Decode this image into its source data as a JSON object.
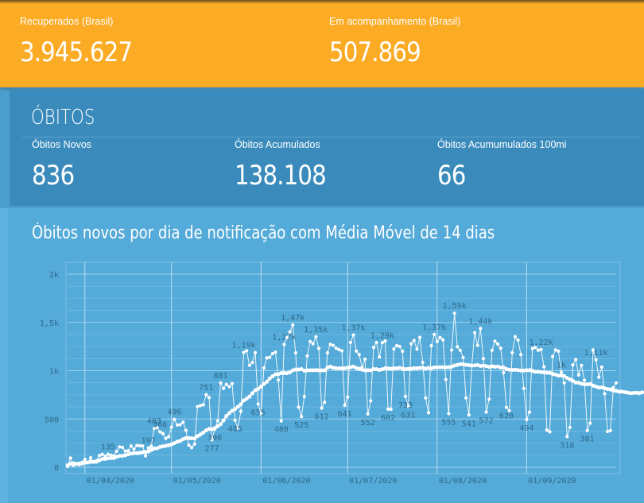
{
  "top_cards": [
    {
      "label": "Recuperados (Brasil)",
      "value": "3.945.627"
    },
    {
      "label": "Em acompanhamento (Brasil)",
      "value": "507.869"
    }
  ],
  "deaths": {
    "title": "ÓBITOS",
    "cards": [
      {
        "label": "Óbitos Novos",
        "value": "836"
      },
      {
        "label": "Óbitos Acumulados",
        "value": "138.108"
      },
      {
        "label": "Óbitos Acumumulados 100mi",
        "value": "66"
      }
    ]
  },
  "colors": {
    "orange": "#fbab24",
    "blue_dark": "#3a8bbc",
    "blue_chart": "#54aad8"
  },
  "chart_data": {
    "type": "line",
    "title": "Óbitos novos por dia de notificação com Média Móvel de 14 dias",
    "ylim": [
      0,
      2000
    ],
    "y_ticks": [
      "0",
      "500",
      "1k",
      "1,5k",
      "2k"
    ],
    "x_ticks": [
      "01/04/2020",
      "01/05/2020",
      "01/06/2020",
      "01/07/2020",
      "01/08/2020",
      "01/09/2020"
    ],
    "grid": true,
    "annotations": [
      "135",
      "403",
      "496",
      "197",
      "751",
      "277",
      "881",
      "396",
      "1,19k",
      "485",
      "655",
      "1,47k",
      "480",
      "1,27k",
      "525",
      "1k",
      "612",
      "1,37k",
      "641",
      "552",
      "1,29k",
      "602",
      "733",
      "631",
      "1,37k",
      "1,59k",
      "555",
      "1,44k",
      "541",
      "572",
      "1,35k",
      "620",
      "494",
      "1,22k",
      "366",
      "318",
      "1,11k",
      "381"
    ],
    "series": [
      {
        "values": [
          9,
          96,
          20,
          37,
          41,
          52,
          81,
          49,
          98,
          51,
          69,
          121,
          134,
          114,
          135,
          124,
          119,
          165,
          211,
          205,
          167,
          171,
          220,
          188,
          225,
          222,
          220,
          118,
          200,
          216,
          403,
          411,
          366,
          349,
          299,
          317,
          415,
          496,
          437,
          441,
          466,
          383,
          229,
          204,
          240,
          628,
          639,
          647,
          751,
          722,
          286,
          396,
          481,
          874,
          816,
          858,
          834,
          866,
          485,
          407,
          579,
          1189,
          1207,
          1055,
          1085,
          1187,
          655,
          553,
          1029,
          1133,
          1138,
          1177,
          1193,
          904,
          480,
          1272,
          1344,
          1403,
          1473,
          1185,
          623,
          525,
          731,
          1153,
          1302,
          1279,
          1351,
          1231,
          612,
          673,
          1184,
          1274,
          1262,
          1233,
          1218,
          1206,
          641,
          727,
          1293,
          1370,
          1203,
          1168,
          1035,
          1119,
          552,
          688,
          1241,
          1292,
          1141,
          1290,
          1308,
          602,
          601,
          1224,
          1260,
          1251,
          1201,
          733,
          631,
          1280,
          1314,
          1223,
          1345,
          1086,
          718,
          565,
          1259,
          1376,
          1302,
          1344,
          1320,
          909,
          555,
          1214,
          1595,
          1248,
          1211,
          1137,
          718,
          541,
          1056,
          1394,
          1262,
          1437,
          1125,
          572,
          705,
          1212,
          1305,
          1277,
          1233,
          980,
          620,
          586,
          1186,
          1352,
          1317,
          1167,
          816,
          494,
          571,
          1229,
          1242,
          1212,
          1220,
          1041,
          386,
          366,
          1148,
          1215,
          1202,
          983,
          874,
          318,
          413,
          1060,
          1115,
          956,
          1055,
          901,
          381,
          457,
          1215,
          1113,
          933,
          1037,
          762,
          370,
          380,
          824,
          873
        ]
      },
      {
        "values": [
          20,
          35,
          41,
          36,
          30,
          38,
          47,
          48,
          56,
          56,
          57,
          71,
          86,
          87,
          92,
          96,
          95,
          108,
          117,
          118,
          125,
          134,
          142,
          146,
          146,
          149,
          154,
          158,
          163,
          178,
          193,
          197,
          210,
          216,
          221,
          227,
          237,
          250,
          264,
          273,
          290,
          302,
          301,
          300,
          297,
          322,
          339,
          359,
          382,
          396,
          393,
          405,
          425,
          445,
          485,
          531,
          560,
          586,
          603,
          627,
          652,
          691,
          710,
          731,
          766,
          797,
          812,
          835,
          862,
          886,
          919,
          942,
          962,
          964,
          974,
          976,
          973,
          984,
          1003,
          1012,
          1012,
          1016,
          1000,
          1004,
          1004,
          1004,
          1006,
          1003,
          1003,
          1004,
          1031,
          1042,
          1030,
          1026,
          1025,
          1025,
          1026,
          1031,
          1035,
          1042,
          1027,
          1020,
          1010,
          1004,
          1004,
          1005,
          1016,
          1015,
          1007,
          1015,
          1025,
          1024,
          1021,
          1026,
          1024,
          1030,
          1021,
          1016,
          1019,
          1021,
          1026,
          1025,
          1029,
          1030,
          1022,
          1029,
          1025,
          1034,
          1034,
          1036,
          1035,
          1035,
          1036,
          1041,
          1053,
          1060,
          1068,
          1066,
          1061,
          1057,
          1052,
          1055,
          1059,
          1048,
          1053,
          1047,
          1039,
          1046,
          1040,
          1043,
          1032,
          1033,
          1017,
          1010,
          1007,
          1009,
          1006,
          1002,
          1001,
          1005,
          1005,
          998,
          989,
          990,
          985,
          982,
          979,
          978,
          967,
          960,
          949,
          951,
          945,
          925,
          909,
          895,
          877,
          875,
          865,
          858,
          859,
          862,
          846,
          835,
          825,
          826,
          818,
          810,
          806,
          794,
          791,
          783,
          783,
          778,
          773,
          767,
          769,
          772,
          767,
          776
        ]
      }
    ]
  }
}
